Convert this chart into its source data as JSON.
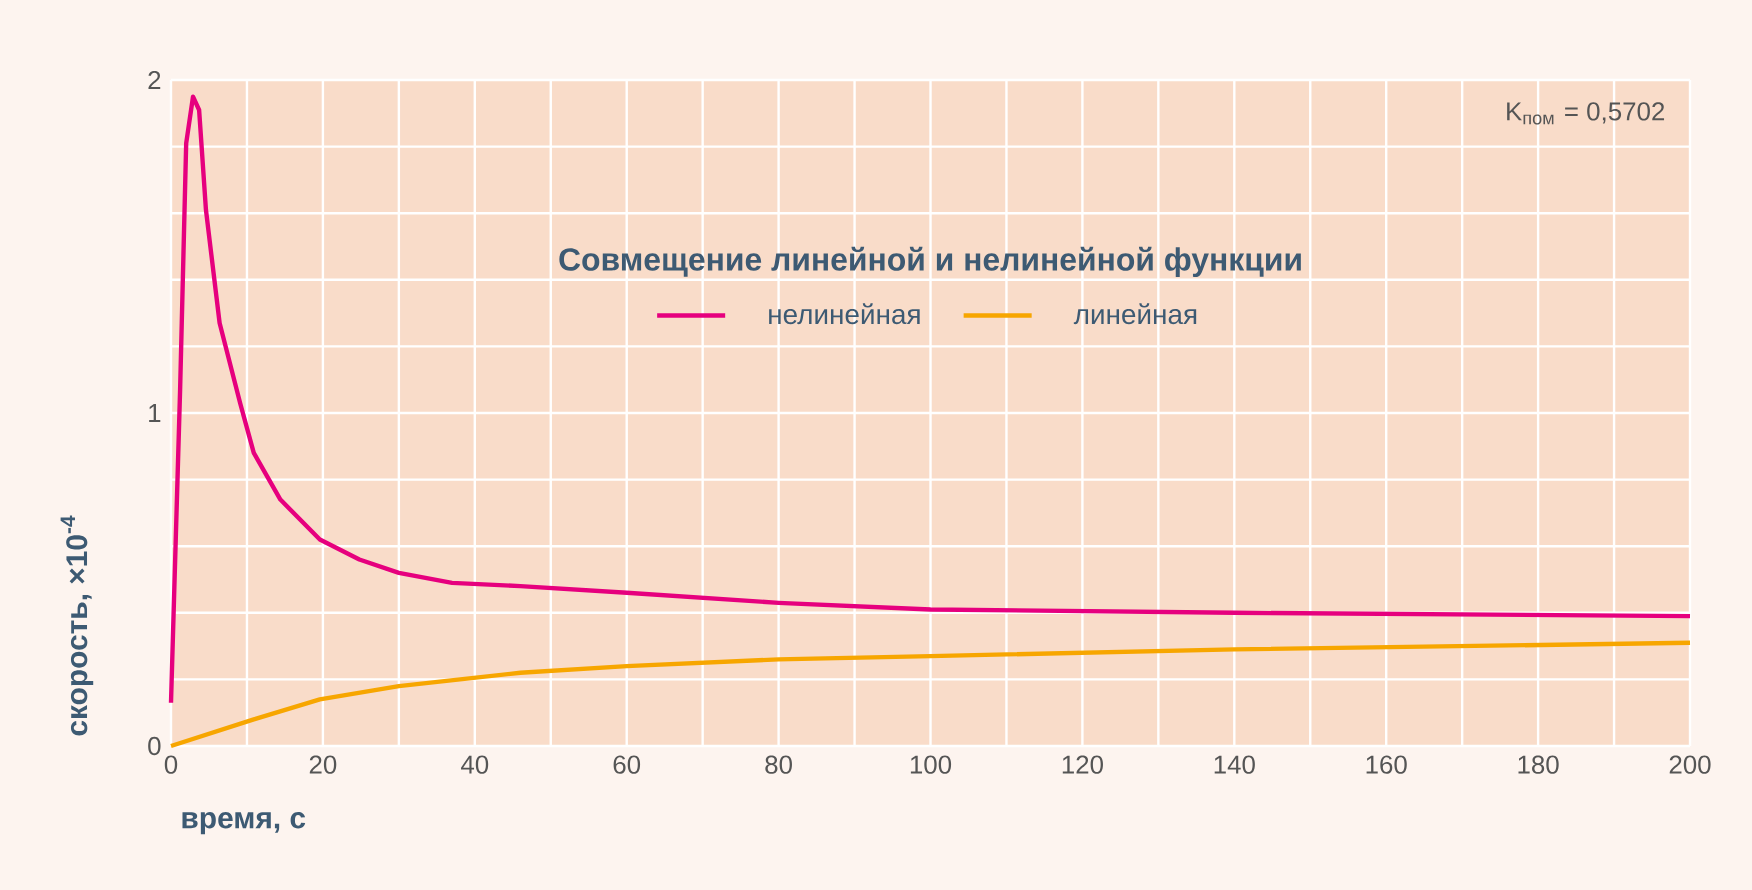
{
  "chart_data": {
    "type": "line",
    "legend_title": "Совмещение линейной и нелинейной функции",
    "xlabel": "время, с",
    "ylabel": "скорость, ×10$^{-4}$",
    "annotations": [
      "K$_{пом}$ = 0,5702"
    ],
    "series": [
      {
        "name": "нелинейная",
        "color": "#e6007e",
        "x": [
          0,
          1.2,
          2.0,
          2.9,
          3.7,
          4.6,
          6.4,
          9.1,
          10.9,
          14.4,
          19.6,
          24.8,
          30,
          37,
          46,
          60,
          80,
          100,
          140,
          200
        ],
        "values": [
          0.13,
          1.07,
          1.81,
          1.95,
          1.91,
          1.61,
          1.27,
          1.03,
          0.88,
          0.74,
          0.62,
          0.56,
          0.52,
          0.49,
          0.48,
          0.46,
          0.43,
          0.41,
          0.4,
          0.39
        ]
      },
      {
        "name": "линейная",
        "color": "#f7a600",
        "x": [
          0,
          10.9,
          19.6,
          30,
          46,
          60,
          80,
          100,
          140,
          200
        ],
        "values": [
          0,
          0.08,
          0.14,
          0.18,
          0.22,
          0.24,
          0.26,
          0.27,
          0.29,
          0.31
        ]
      }
    ],
    "xlim": [
      0,
      200
    ],
    "ylim": [
      0,
      2
    ],
    "xticks": [
      0,
      {
        "value": 10,
        "label": null
      },
      20,
      {
        "value": 30,
        "label": null
      },
      40,
      {
        "value": 50,
        "label": null
      },
      60,
      {
        "value": 70,
        "label": null
      },
      80,
      {
        "value": 90,
        "label": null
      },
      100,
      {
        "value": 110,
        "label": null
      },
      120,
      {
        "value": 130,
        "label": null
      },
      140,
      {
        "value": 150,
        "label": null
      },
      160,
      {
        "value": 170,
        "label": null
      },
      180,
      {
        "value": 190,
        "label": null
      },
      200
    ],
    "yticks": [
      0,
      {
        "value": 0.2,
        "label": null
      },
      {
        "value": 0.4,
        "label": null
      },
      {
        "value": 0.6,
        "label": null
      },
      {
        "value": 0.8,
        "label": null
      },
      1,
      {
        "value": 1.2,
        "label": null
      },
      {
        "value": 1.4,
        "label": null
      },
      {
        "value": 1.6,
        "label": null
      },
      {
        "value": 1.8,
        "label": null
      },
      2
    ],
    "grid": true,
    "legend": "top",
    "marker": "none",
    "line_style": "solid"
  }
}
